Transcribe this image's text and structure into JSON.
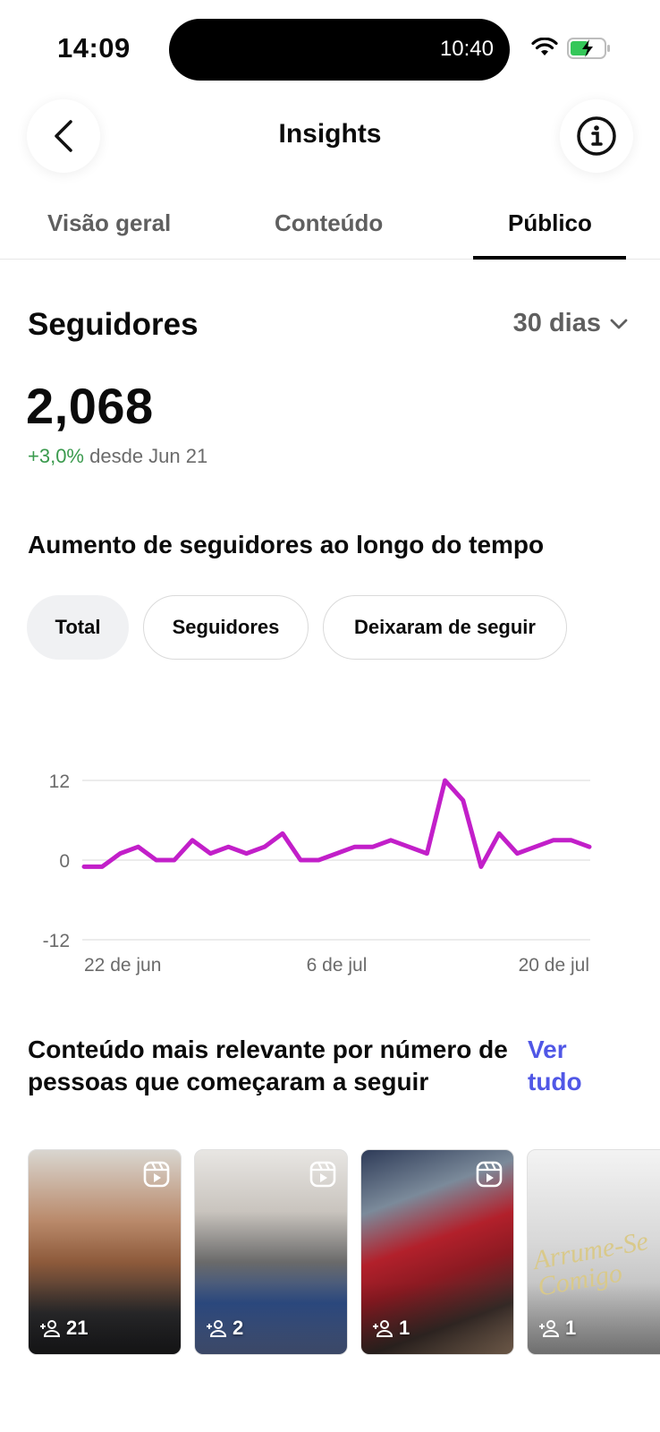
{
  "status": {
    "time": "14:09",
    "island_time": "10:40"
  },
  "header": {
    "title": "Insights"
  },
  "tabs": [
    {
      "label": "Visão geral"
    },
    {
      "label": "Conteúdo"
    },
    {
      "label": "Público"
    }
  ],
  "followers": {
    "title": "Seguidores",
    "range": "30 dias",
    "count": "2,068",
    "delta": "+3,0%",
    "since": "desde Jun 21"
  },
  "growth": {
    "title": "Aumento de seguidores ao longo do tempo",
    "chips": [
      {
        "label": "Total"
      },
      {
        "label": "Seguidores"
      },
      {
        "label": "Deixaram de seguir"
      }
    ]
  },
  "chart_data": {
    "type": "line",
    "x": [
      "22 de jun",
      "23 de jun",
      "24 de jun",
      "25 de jun",
      "26 de jun",
      "27 de jun",
      "28 de jun",
      "29 de jun",
      "30 de jun",
      "1 de jul",
      "2 de jul",
      "3 de jul",
      "4 de jul",
      "5 de jul",
      "6 de jul",
      "7 de jul",
      "8 de jul",
      "9 de jul",
      "10 de jul",
      "11 de jul",
      "12 de jul",
      "13 de jul",
      "14 de jul",
      "15 de jul",
      "16 de jul",
      "17 de jul",
      "18 de jul",
      "19 de jul",
      "20 de jul"
    ],
    "series": [
      {
        "values": [
          -1,
          -1,
          1,
          2,
          0,
          0,
          3,
          1,
          2,
          1,
          2,
          4,
          0,
          0,
          1,
          2,
          2,
          3,
          2,
          1,
          12,
          9,
          -1,
          4,
          1,
          2,
          3,
          3,
          2
        ]
      }
    ],
    "ylim": [
      -12,
      12
    ],
    "yticks": [
      "12",
      "0",
      "-12"
    ],
    "xticks": [
      "22 de jun",
      "6 de jul",
      "20 de jul"
    ],
    "line_color": "#c21fc9",
    "grid": true
  },
  "content": {
    "title": "Conteúdo mais relevante por número de pessoas que começaram a seguir",
    "see_all": "Ver tudo",
    "items": [
      {
        "count": "21"
      },
      {
        "count": "2"
      },
      {
        "count": "1"
      },
      {
        "count": "1",
        "overlay_text": "Arrume-Se Comigo"
      }
    ]
  },
  "colors": {
    "accent": "#5057e6",
    "positive": "#3a9a4d",
    "line": "#c21fc9"
  }
}
